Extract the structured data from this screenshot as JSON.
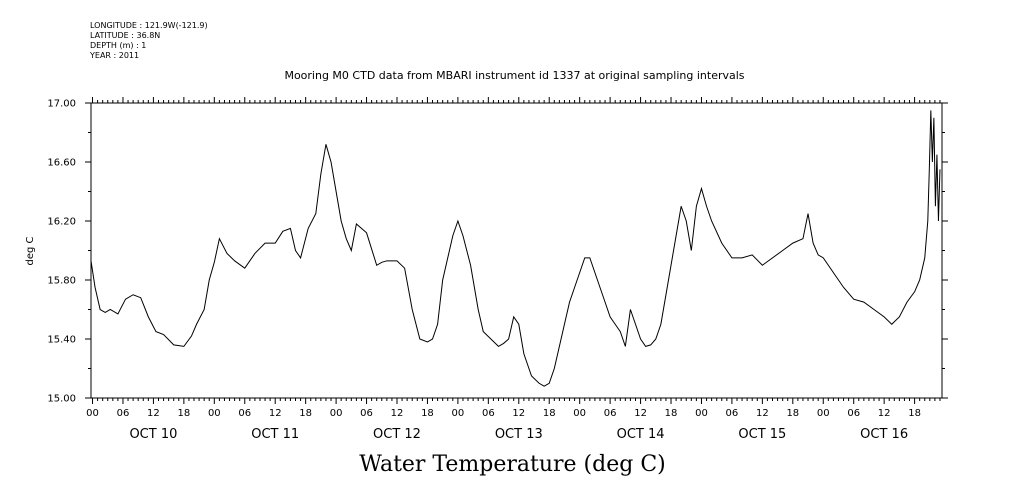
{
  "meta": {
    "longitude": "LONGITUDE : 121.9W(-121.9)",
    "latitude": "LATITUDE : 36.8N",
    "depth": "DEPTH (m) : 1",
    "year": "YEAR : 2011"
  },
  "chart_data": {
    "type": "line",
    "title": "Mooring M0 CTD data from MBARI instrument id 1337 at original sampling intervals",
    "footer_title": "Water Temperature (deg C)",
    "ylabel": "deg C",
    "xlabel": "",
    "ylim": [
      15.0,
      17.0
    ],
    "y_ticks": [
      "15.00",
      "15.40",
      "15.80",
      "16.20",
      "16.60",
      "17.00"
    ],
    "hour_tick_labels": [
      "00",
      "06",
      "12",
      "18"
    ],
    "day_labels": [
      "OCT 10",
      "OCT 11",
      "OCT 12",
      "OCT 13",
      "OCT 14",
      "OCT 15",
      "OCT 16"
    ],
    "x_unit": "hours since OCT 10 00",
    "xlim": [
      -0.3,
      167.4
    ],
    "grid": false,
    "series": [
      {
        "name": "",
        "x": [
          -0.3,
          0.5,
          1.5,
          2.5,
          3.5,
          5,
          6.5,
          8,
          9.5,
          11,
          12.5,
          14,
          16,
          18,
          19.5,
          20.5,
          22,
          23,
          24,
          25,
          26.5,
          28,
          30,
          32,
          34,
          36,
          37.5,
          39,
          40,
          41,
          42.5,
          44,
          45,
          46,
          47,
          48,
          49,
          50,
          51,
          52,
          54,
          56,
          57,
          58,
          60,
          61.5,
          63,
          64.5,
          66,
          67,
          68,
          69,
          70,
          71,
          72,
          73,
          74.5,
          76,
          77,
          78.5,
          80,
          81,
          82,
          83,
          84,
          85,
          86.5,
          88,
          89,
          90,
          91,
          92,
          93,
          94,
          95,
          96,
          97,
          98,
          99.5,
          101,
          102,
          103,
          104,
          105,
          106,
          107,
          108,
          109,
          110,
          111,
          112,
          113,
          114,
          115,
          116,
          117,
          118,
          119,
          120,
          121,
          122,
          124,
          126,
          128,
          130,
          132,
          134,
          136,
          138,
          140,
          141,
          142,
          143,
          144,
          146,
          148,
          150,
          152,
          154,
          156,
          157.5,
          159,
          160.5,
          162,
          163,
          164,
          164.6,
          164.9,
          165.2,
          165.5,
          165.8,
          166.1,
          166.4,
          166.7,
          167.0
        ],
        "y": [
          15.93,
          15.75,
          15.6,
          15.58,
          15.6,
          15.57,
          15.67,
          15.7,
          15.68,
          15.55,
          15.45,
          15.43,
          15.36,
          15.35,
          15.42,
          15.5,
          15.6,
          15.8,
          15.92,
          16.08,
          15.98,
          15.93,
          15.88,
          15.98,
          16.05,
          16.05,
          16.13,
          16.15,
          16.0,
          15.95,
          16.15,
          16.25,
          16.52,
          16.72,
          16.6,
          16.4,
          16.2,
          16.08,
          16.0,
          16.18,
          16.12,
          15.9,
          15.92,
          15.93,
          15.93,
          15.88,
          15.6,
          15.4,
          15.38,
          15.4,
          15.5,
          15.8,
          15.95,
          16.1,
          16.2,
          16.1,
          15.9,
          15.6,
          15.45,
          15.4,
          15.35,
          15.37,
          15.4,
          15.55,
          15.5,
          15.3,
          15.15,
          15.1,
          15.08,
          15.1,
          15.2,
          15.35,
          15.5,
          15.65,
          15.75,
          15.85,
          15.95,
          15.95,
          15.8,
          15.65,
          15.55,
          15.5,
          15.45,
          15.35,
          15.6,
          15.5,
          15.4,
          15.35,
          15.36,
          15.4,
          15.5,
          15.7,
          15.9,
          16.1,
          16.3,
          16.2,
          16.0,
          16.3,
          16.42,
          16.3,
          16.2,
          16.05,
          15.95,
          15.95,
          15.97,
          15.9,
          15.95,
          16.0,
          16.05,
          16.08,
          16.25,
          16.05,
          15.97,
          15.95,
          15.85,
          15.75,
          15.67,
          15.65,
          15.6,
          15.55,
          15.5,
          15.55,
          15.65,
          15.72,
          15.8,
          15.95,
          16.2,
          16.55,
          16.95,
          16.6,
          16.9,
          16.3,
          16.65,
          16.2,
          16.55
        ]
      }
    ]
  }
}
